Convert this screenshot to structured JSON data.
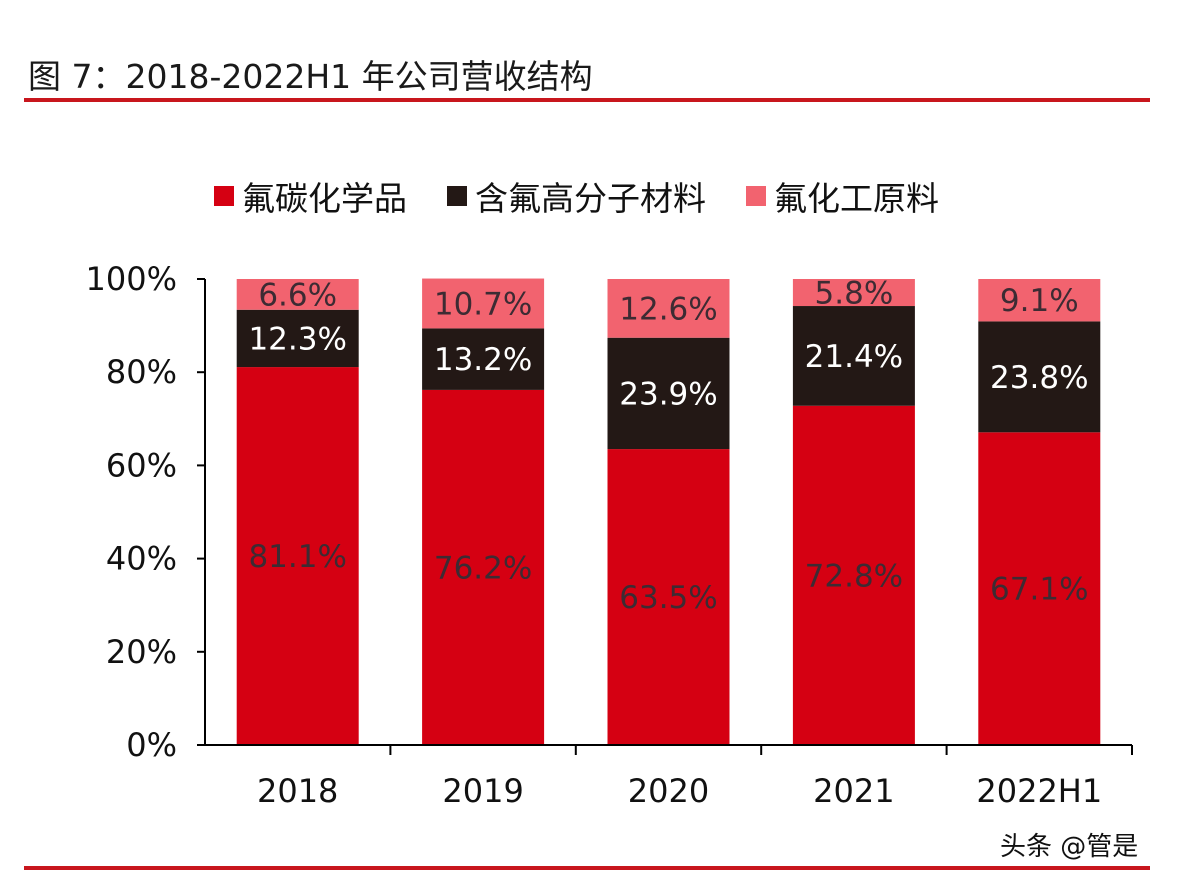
{
  "header": {
    "title": "图 7：2018-2022H1 年公司营收结构"
  },
  "watermark": "头条 @管是",
  "chart_data": {
    "type": "bar",
    "stacked": true,
    "title": "",
    "xlabel": "",
    "ylabel": "",
    "categories": [
      "2018",
      "2019",
      "2020",
      "2021",
      "2022H1"
    ],
    "series": [
      {
        "name": "氟碳化学品",
        "color": "#d50012",
        "label_color": "#3d2b33",
        "values": [
          81.1,
          76.2,
          63.5,
          72.8,
          67.1
        ]
      },
      {
        "name": "含氟高分子材料",
        "color": "#231815",
        "label_color": "#ffffff",
        "values": [
          12.3,
          13.2,
          23.9,
          21.4,
          23.8
        ]
      },
      {
        "name": "氟化工原料",
        "color": "#f2636f",
        "label_color": "#3d2b33",
        "values": [
          6.6,
          10.7,
          12.6,
          5.8,
          9.1
        ]
      }
    ],
    "ylim": [
      0,
      100
    ],
    "yticks": [
      "0%",
      "20%",
      "40%",
      "60%",
      "80%",
      "100%"
    ],
    "grid": false,
    "legend_position": "top",
    "value_suffix": "%"
  }
}
